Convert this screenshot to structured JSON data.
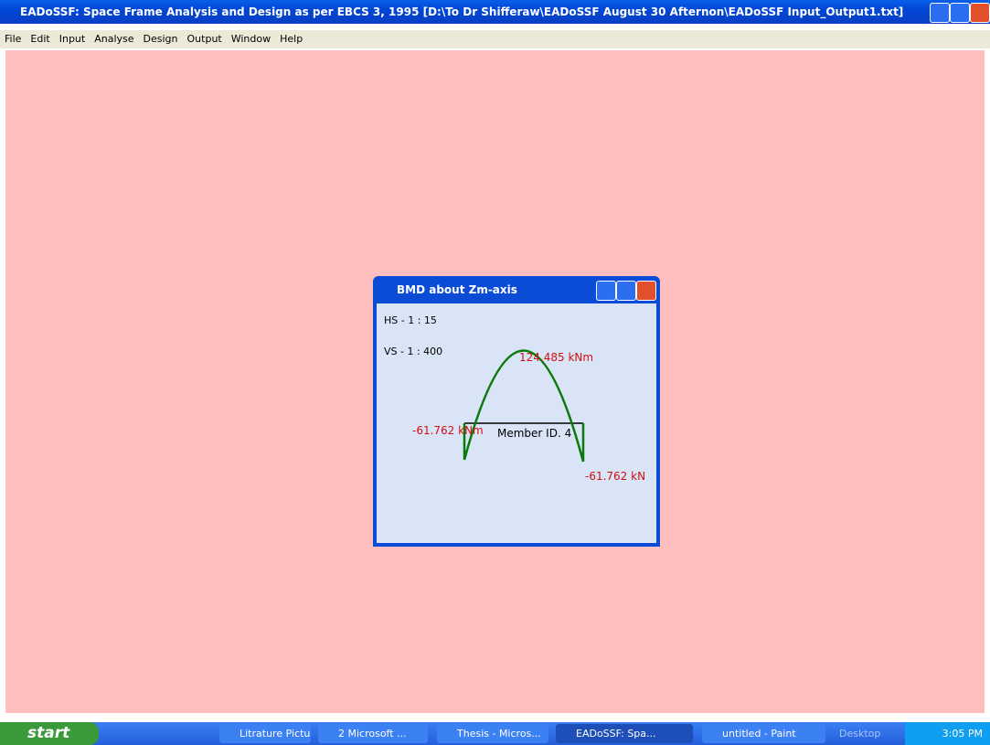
{
  "window": {
    "title": "EADoSSF: Space Frame Analysis and Design as per EBCS 3, 1995 [D:\\To Dr Shifferaw\\EADoSSF August 30 Afternon\\EADoSSF Input_Output1.txt]"
  },
  "menu": [
    "File",
    "Edit",
    "Input",
    "Analyse",
    "Design",
    "Output",
    "Window",
    "Help"
  ],
  "dialog": {
    "title": "BMD about Zm-axis",
    "hscale": "HS - 1 : 15",
    "vscale": "VS - 1 : 400",
    "peak_label": "124.485 kNm",
    "left_label": "-61.762 kNm",
    "member_label": "Member ID. 4",
    "right_label": "-61.762 kN"
  },
  "taskbar": {
    "start": "start",
    "buttons": [
      "Litrature Pictu...",
      "2 Microsoft ...",
      "Thesis - Micros...",
      "EADoSSF: Spa...",
      "untitled - Paint"
    ],
    "desktop": "Desktop",
    "clock": "3:05 PM"
  }
}
